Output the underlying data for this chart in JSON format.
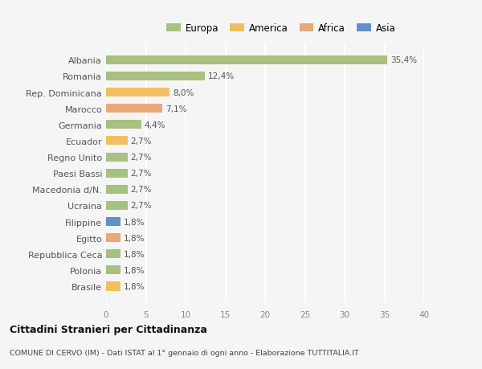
{
  "countries": [
    "Albania",
    "Romania",
    "Rep. Dominicana",
    "Marocco",
    "Germania",
    "Ecuador",
    "Regno Unito",
    "Paesi Bassi",
    "Macedonia d/N.",
    "Ucraina",
    "Filippine",
    "Egitto",
    "Repubblica Ceca",
    "Polonia",
    "Brasile"
  ],
  "values": [
    35.4,
    12.4,
    8.0,
    7.1,
    4.4,
    2.7,
    2.7,
    2.7,
    2.7,
    2.7,
    1.8,
    1.8,
    1.8,
    1.8,
    1.8
  ],
  "labels": [
    "35,4%",
    "12,4%",
    "8,0%",
    "7,1%",
    "4,4%",
    "2,7%",
    "2,7%",
    "2,7%",
    "2,7%",
    "2,7%",
    "1,8%",
    "1,8%",
    "1,8%",
    "1,8%",
    "1,8%"
  ],
  "colors": [
    "#a8c080",
    "#a8c080",
    "#f0c060",
    "#e8a878",
    "#a8c080",
    "#f0c060",
    "#a8c080",
    "#a8c080",
    "#a8c080",
    "#a8c080",
    "#6090c8",
    "#e8a878",
    "#a8c080",
    "#a8c080",
    "#f0c060"
  ],
  "legend_labels": [
    "Europa",
    "America",
    "Africa",
    "Asia"
  ],
  "legend_colors": [
    "#a8c080",
    "#f0c060",
    "#e8a878",
    "#6090c8"
  ],
  "xlim": [
    0,
    40
  ],
  "xticks": [
    0,
    5,
    10,
    15,
    20,
    25,
    30,
    35,
    40
  ],
  "title_bold": "Cittadini Stranieri per Cittadinanza",
  "subtitle": "COMUNE DI CERVO (IM) - Dati ISTAT al 1° gennaio di ogni anno - Elaborazione TUTTITALIA.IT",
  "background_color": "#f5f5f5",
  "grid_color": "#ffffff",
  "bar_height": 0.55
}
